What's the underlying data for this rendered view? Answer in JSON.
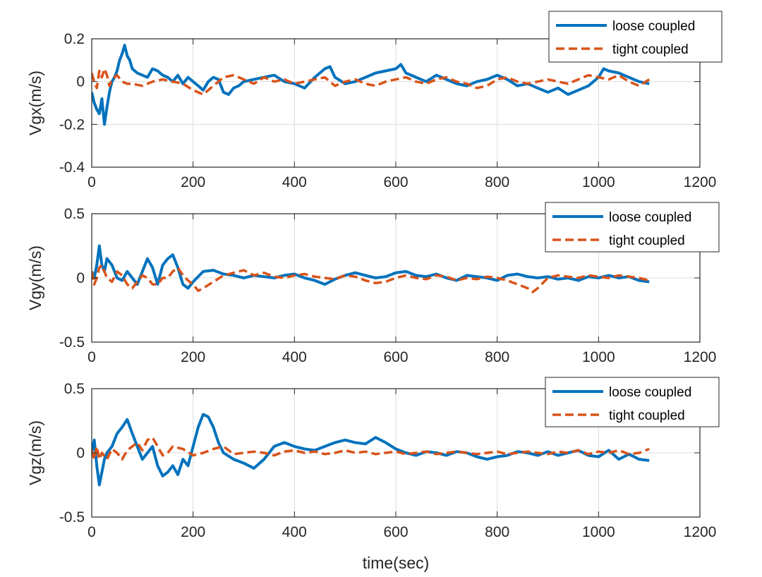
{
  "colors": {
    "loose": "#0072BD",
    "tight": "#D95319"
  },
  "xlabel": "time(sec)",
  "chart_data": [
    {
      "type": "line",
      "ylabel": "Vgx(m/s)",
      "xlim": [
        0,
        1200
      ],
      "ylim": [
        -0.4,
        0.2
      ],
      "xticks": [
        0,
        200,
        400,
        600,
        800,
        1000,
        1200
      ],
      "xtick_labels": [
        "0",
        "200",
        "400",
        "600",
        "800",
        "1000",
        "1200"
      ],
      "yticks": [
        -0.4,
        -0.2,
        0,
        0.2
      ],
      "ytick_labels": [
        "-0.4",
        "-0.2",
        "0",
        "0.2"
      ],
      "legend": [
        "loose coupled",
        "tight coupled"
      ],
      "series": [
        {
          "name": "loose coupled",
          "style": "solid",
          "x": [
            0,
            5,
            10,
            15,
            20,
            25,
            30,
            35,
            40,
            45,
            50,
            55,
            60,
            65,
            70,
            75,
            80,
            90,
            100,
            110,
            120,
            130,
            140,
            150,
            160,
            170,
            180,
            190,
            200,
            210,
            220,
            230,
            240,
            250,
            260,
            270,
            280,
            290,
            300,
            320,
            340,
            360,
            380,
            400,
            420,
            440,
            460,
            470,
            480,
            500,
            520,
            540,
            560,
            580,
            600,
            610,
            620,
            640,
            660,
            680,
            700,
            720,
            740,
            760,
            780,
            800,
            820,
            840,
            860,
            880,
            900,
            920,
            940,
            960,
            980,
            1000,
            1010,
            1020,
            1040,
            1060,
            1080,
            1100
          ],
          "y": [
            -0.05,
            -0.1,
            -0.13,
            -0.15,
            -0.08,
            -0.2,
            -0.12,
            -0.05,
            0.0,
            0.02,
            0.05,
            0.1,
            0.13,
            0.17,
            0.12,
            0.1,
            0.06,
            0.04,
            0.03,
            0.02,
            0.06,
            0.05,
            0.03,
            0.02,
            0.0,
            0.03,
            -0.01,
            0.02,
            0.0,
            -0.02,
            -0.04,
            0.0,
            0.02,
            0.01,
            -0.05,
            -0.06,
            -0.03,
            -0.02,
            0.0,
            0.01,
            0.02,
            0.03,
            0.0,
            -0.01,
            -0.03,
            0.02,
            0.06,
            0.07,
            0.02,
            -0.01,
            0.0,
            0.02,
            0.04,
            0.05,
            0.06,
            0.08,
            0.04,
            0.02,
            0.0,
            0.03,
            0.01,
            -0.01,
            -0.02,
            0.0,
            0.01,
            0.03,
            0.01,
            -0.02,
            -0.01,
            -0.03,
            -0.05,
            -0.03,
            -0.06,
            -0.04,
            -0.02,
            0.02,
            0.06,
            0.05,
            0.04,
            0.02,
            0.0,
            -0.01
          ]
        },
        {
          "name": "tight coupled",
          "style": "dashed",
          "x": [
            0,
            5,
            10,
            15,
            20,
            25,
            30,
            35,
            40,
            50,
            60,
            70,
            80,
            100,
            120,
            140,
            160,
            180,
            200,
            220,
            240,
            260,
            280,
            300,
            320,
            340,
            360,
            380,
            400,
            420,
            440,
            460,
            480,
            500,
            520,
            540,
            560,
            580,
            600,
            620,
            640,
            660,
            680,
            700,
            720,
            740,
            760,
            780,
            800,
            820,
            840,
            860,
            880,
            900,
            920,
            940,
            960,
            980,
            1000,
            1020,
            1040,
            1060,
            1080,
            1100
          ],
          "y": [
            0.04,
            0.0,
            -0.03,
            0.05,
            0.02,
            0.06,
            0.03,
            -0.02,
            0.01,
            0.03,
            0.0,
            -0.01,
            -0.01,
            -0.02,
            0.0,
            0.01,
            0.0,
            -0.01,
            -0.04,
            -0.06,
            -0.02,
            0.02,
            0.03,
            0.01,
            -0.01,
            0.02,
            0.0,
            0.01,
            -0.01,
            0.0,
            0.01,
            0.02,
            -0.02,
            0.0,
            0.01,
            -0.01,
            -0.02,
            0.0,
            0.01,
            0.02,
            0.0,
            -0.01,
            0.01,
            0.02,
            0.0,
            -0.01,
            -0.03,
            -0.02,
            0.01,
            0.02,
            0.0,
            -0.01,
            0.0,
            0.01,
            0.0,
            -0.01,
            0.01,
            0.03,
            0.02,
            0.01,
            0.03,
            0.0,
            -0.02,
            0.01
          ]
        }
      ]
    },
    {
      "type": "line",
      "ylabel": "Vgy(m/s)",
      "xlim": [
        0,
        1200
      ],
      "ylim": [
        -0.5,
        0.5
      ],
      "xticks": [
        0,
        200,
        400,
        600,
        800,
        1000,
        1200
      ],
      "xtick_labels": [
        "0",
        "200",
        "400",
        "600",
        "800",
        "1000",
        "1200"
      ],
      "yticks": [
        -0.5,
        0,
        0.5
      ],
      "ytick_labels": [
        "-0.5",
        "0",
        "0.5"
      ],
      "legend": [
        "loose coupled",
        "tight coupled"
      ],
      "series": [
        {
          "name": "loose coupled",
          "style": "solid",
          "x": [
            0,
            5,
            10,
            15,
            20,
            25,
            30,
            40,
            50,
            60,
            70,
            80,
            90,
            100,
            110,
            120,
            130,
            140,
            150,
            160,
            170,
            180,
            190,
            200,
            220,
            240,
            260,
            280,
            300,
            320,
            340,
            360,
            380,
            400,
            420,
            440,
            460,
            480,
            500,
            520,
            540,
            560,
            580,
            600,
            620,
            640,
            660,
            680,
            700,
            720,
            740,
            760,
            780,
            800,
            820,
            840,
            860,
            880,
            900,
            920,
            940,
            960,
            980,
            1000,
            1020,
            1040,
            1060,
            1080,
            1100
          ],
          "y": [
            0.05,
            0.0,
            0.1,
            0.25,
            0.1,
            0.05,
            0.15,
            0.1,
            0.0,
            -0.02,
            0.05,
            0.0,
            -0.05,
            0.05,
            0.15,
            0.08,
            -0.05,
            0.1,
            0.15,
            0.18,
            0.08,
            -0.05,
            -0.08,
            -0.03,
            0.05,
            0.06,
            0.03,
            0.02,
            0.0,
            0.02,
            0.01,
            0.0,
            0.02,
            0.03,
            0.0,
            -0.02,
            -0.05,
            -0.01,
            0.02,
            0.04,
            0.02,
            0.0,
            0.01,
            0.04,
            0.05,
            0.02,
            0.01,
            0.03,
            0.0,
            -0.02,
            0.02,
            0.01,
            0.0,
            -0.02,
            0.02,
            0.03,
            0.01,
            0.0,
            0.01,
            -0.01,
            0.0,
            -0.02,
            0.01,
            0.0,
            0.02,
            0.0,
            0.01,
            -0.02,
            -0.03
          ]
        },
        {
          "name": "tight coupled",
          "style": "dashed",
          "x": [
            0,
            5,
            10,
            15,
            20,
            30,
            40,
            50,
            60,
            70,
            80,
            90,
            100,
            110,
            120,
            130,
            140,
            150,
            160,
            170,
            180,
            190,
            200,
            210,
            220,
            240,
            260,
            280,
            300,
            320,
            340,
            360,
            380,
            400,
            420,
            440,
            460,
            480,
            500,
            520,
            540,
            560,
            580,
            600,
            620,
            640,
            660,
            680,
            700,
            720,
            740,
            760,
            780,
            800,
            820,
            840,
            860,
            870,
            880,
            900,
            920,
            940,
            960,
            980,
            1000,
            1020,
            1040,
            1060,
            1080,
            1100
          ],
          "y": [
            0.05,
            -0.05,
            0.0,
            0.08,
            0.1,
            0.0,
            -0.03,
            0.05,
            0.02,
            -0.05,
            -0.08,
            -0.03,
            0.02,
            0.0,
            -0.05,
            -0.05,
            0.0,
            0.0,
            0.05,
            0.08,
            0.02,
            -0.02,
            -0.05,
            -0.1,
            -0.08,
            -0.03,
            0.02,
            0.04,
            0.06,
            0.02,
            0.04,
            0.01,
            0.0,
            0.02,
            0.03,
            0.01,
            0.0,
            -0.01,
            0.02,
            0.01,
            -0.02,
            -0.04,
            -0.03,
            0.0,
            0.02,
            0.0,
            -0.01,
            0.02,
            0.01,
            -0.02,
            0.0,
            -0.01,
            0.01,
            0.0,
            -0.02,
            -0.05,
            -0.08,
            -0.11,
            -0.08,
            0.0,
            0.02,
            0.01,
            0.0,
            0.02,
            0.01,
            0.0,
            0.02,
            0.01,
            0.0,
            -0.02
          ]
        }
      ]
    },
    {
      "type": "line",
      "ylabel": "Vgz(m/s)",
      "xlabel": "time(sec)",
      "xlim": [
        0,
        1200
      ],
      "ylim": [
        -0.5,
        0.5
      ],
      "xticks": [
        0,
        200,
        400,
        600,
        800,
        1000,
        1200
      ],
      "xtick_labels": [
        "0",
        "200",
        "400",
        "600",
        "800",
        "1000",
        "1200"
      ],
      "yticks": [
        -0.5,
        0,
        0.5
      ],
      "ytick_labels": [
        "-0.5",
        "0",
        "0.5"
      ],
      "legend": [
        "loose coupled",
        "tight coupled"
      ],
      "series": [
        {
          "name": "loose coupled",
          "style": "solid",
          "x": [
            0,
            5,
            10,
            15,
            20,
            25,
            30,
            40,
            50,
            60,
            70,
            80,
            90,
            100,
            110,
            120,
            130,
            140,
            150,
            160,
            170,
            180,
            190,
            200,
            210,
            220,
            230,
            240,
            250,
            260,
            280,
            300,
            320,
            340,
            360,
            380,
            400,
            420,
            440,
            460,
            480,
            500,
            520,
            540,
            560,
            580,
            600,
            620,
            640,
            660,
            680,
            700,
            720,
            740,
            760,
            780,
            800,
            820,
            840,
            860,
            880,
            900,
            920,
            940,
            960,
            980,
            1000,
            1020,
            1040,
            1060,
            1080,
            1100
          ],
          "y": [
            0.0,
            0.1,
            -0.1,
            -0.25,
            -0.15,
            -0.05,
            0.0,
            0.05,
            0.15,
            0.2,
            0.26,
            0.15,
            0.05,
            -0.05,
            0.0,
            0.05,
            -0.1,
            -0.18,
            -0.15,
            -0.1,
            -0.17,
            -0.05,
            -0.1,
            0.05,
            0.2,
            0.3,
            0.28,
            0.2,
            0.08,
            0.0,
            -0.05,
            -0.08,
            -0.12,
            -0.05,
            0.05,
            0.08,
            0.05,
            0.03,
            0.02,
            0.05,
            0.08,
            0.1,
            0.08,
            0.07,
            0.12,
            0.08,
            0.03,
            0.0,
            -0.02,
            0.01,
            0.0,
            -0.02,
            0.01,
            0.0,
            -0.03,
            -0.05,
            -0.03,
            -0.02,
            0.01,
            0.0,
            -0.02,
            0.01,
            -0.02,
            0.0,
            0.02,
            -0.02,
            -0.03,
            0.02,
            -0.05,
            -0.01,
            -0.05,
            -0.06
          ]
        },
        {
          "name": "tight coupled",
          "style": "dashed",
          "x": [
            0,
            5,
            10,
            15,
            20,
            30,
            40,
            50,
            60,
            70,
            80,
            90,
            100,
            110,
            120,
            130,
            140,
            150,
            160,
            180,
            200,
            220,
            240,
            260,
            280,
            300,
            320,
            340,
            360,
            380,
            400,
            420,
            440,
            460,
            480,
            500,
            520,
            540,
            560,
            580,
            600,
            620,
            640,
            660,
            680,
            700,
            720,
            740,
            760,
            780,
            800,
            820,
            840,
            860,
            880,
            900,
            920,
            940,
            960,
            980,
            1000,
            1020,
            1040,
            1060,
            1080,
            1100
          ],
          "y": [
            0.02,
            -0.05,
            0.05,
            -0.05,
            0.0,
            -0.05,
            0.03,
            0.0,
            -0.05,
            0.02,
            0.05,
            0.08,
            0.02,
            0.1,
            0.12,
            0.05,
            -0.02,
            0.0,
            0.05,
            0.03,
            -0.02,
            0.0,
            0.03,
            0.05,
            -0.01,
            0.0,
            0.01,
            0.0,
            -0.02,
            0.01,
            0.02,
            0.0,
            0.01,
            -0.01,
            0.0,
            0.02,
            0.0,
            0.01,
            -0.01,
            0.0,
            0.01,
            -0.01,
            0.0,
            0.01,
            -0.01,
            0.0,
            0.01,
            0.0,
            -0.01,
            0.0,
            0.01,
            -0.01,
            0.0,
            0.01,
            0.0,
            -0.01,
            0.01,
            0.0,
            0.02,
            -0.01,
            0.01,
            0.0,
            0.02,
            -0.01,
            0.0,
            0.03
          ]
        }
      ]
    }
  ]
}
